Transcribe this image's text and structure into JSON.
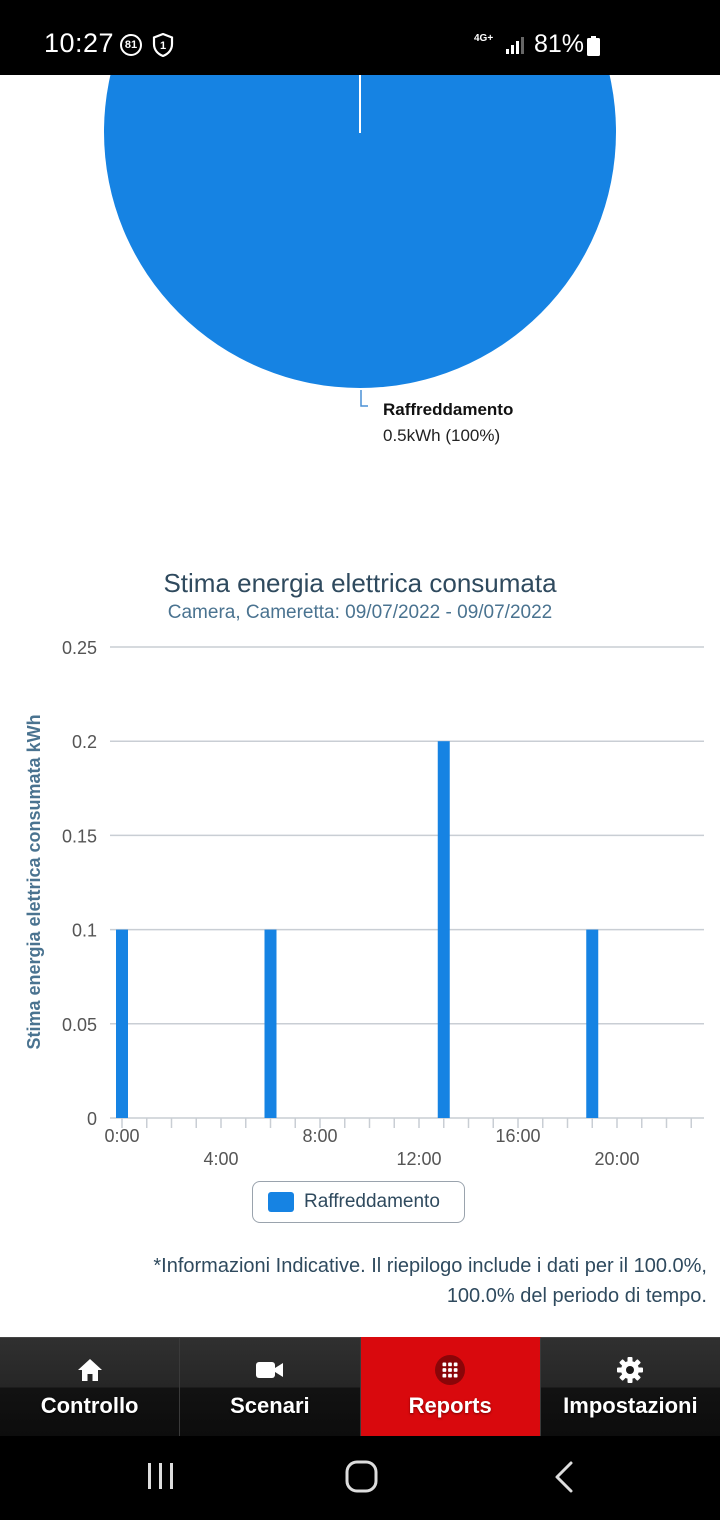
{
  "status_bar": {
    "time": "10:27",
    "badge_number": "81",
    "shield_number": "1",
    "network_type": "4G+",
    "battery_percent": "81%"
  },
  "pie": {
    "slice_label": "Raffreddamento",
    "slice_value": "0.5kWh (100%)",
    "color": "#1683e3"
  },
  "chart": {
    "title": "Stima energia elettrica consumata",
    "subtitle": "Camera, Cameretta: 09/07/2022 - 09/07/2022",
    "legend_label": "Raffreddamento",
    "bar_color": "#1683e3"
  },
  "chart_data": {
    "type": "bar",
    "title": "Stima energia elettrica consumata",
    "subtitle": "Camera, Cameretta: 09/07/2022 - 09/07/2022",
    "ylabel": "Stima energia elettrica consumata kWh",
    "xlabel": "",
    "ylim": [
      0,
      0.25
    ],
    "yticks": [
      "0",
      "0.05",
      "0.1",
      "0.15",
      "0.2",
      "0.25"
    ],
    "xticks_upper": [
      "0:00",
      "8:00",
      "16:00"
    ],
    "xticks_lower": [
      "4:00",
      "12:00",
      "20:00"
    ],
    "x_range_hours": [
      0,
      24
    ],
    "series": [
      {
        "name": "Raffreddamento",
        "points": [
          {
            "hour": 0,
            "value": 0.1
          },
          {
            "hour": 6,
            "value": 0.1
          },
          {
            "hour": 13,
            "value": 0.2
          },
          {
            "hour": 19,
            "value": 0.1
          }
        ]
      }
    ],
    "grid": true,
    "legend_position": "bottom"
  },
  "note": {
    "line1": "*Informazioni Indicative. Il riepilogo include i dati per il 100.0%,",
    "line2": "100.0% del periodo di tempo."
  },
  "bottom_nav": [
    {
      "label": "Controllo",
      "icon": "home-icon",
      "active": false
    },
    {
      "label": "Scenari",
      "icon": "video-camera-icon",
      "active": false
    },
    {
      "label": "Reports",
      "icon": "grid-icon",
      "active": true
    },
    {
      "label": "Impostazioni",
      "icon": "gear-icon",
      "active": false
    }
  ]
}
